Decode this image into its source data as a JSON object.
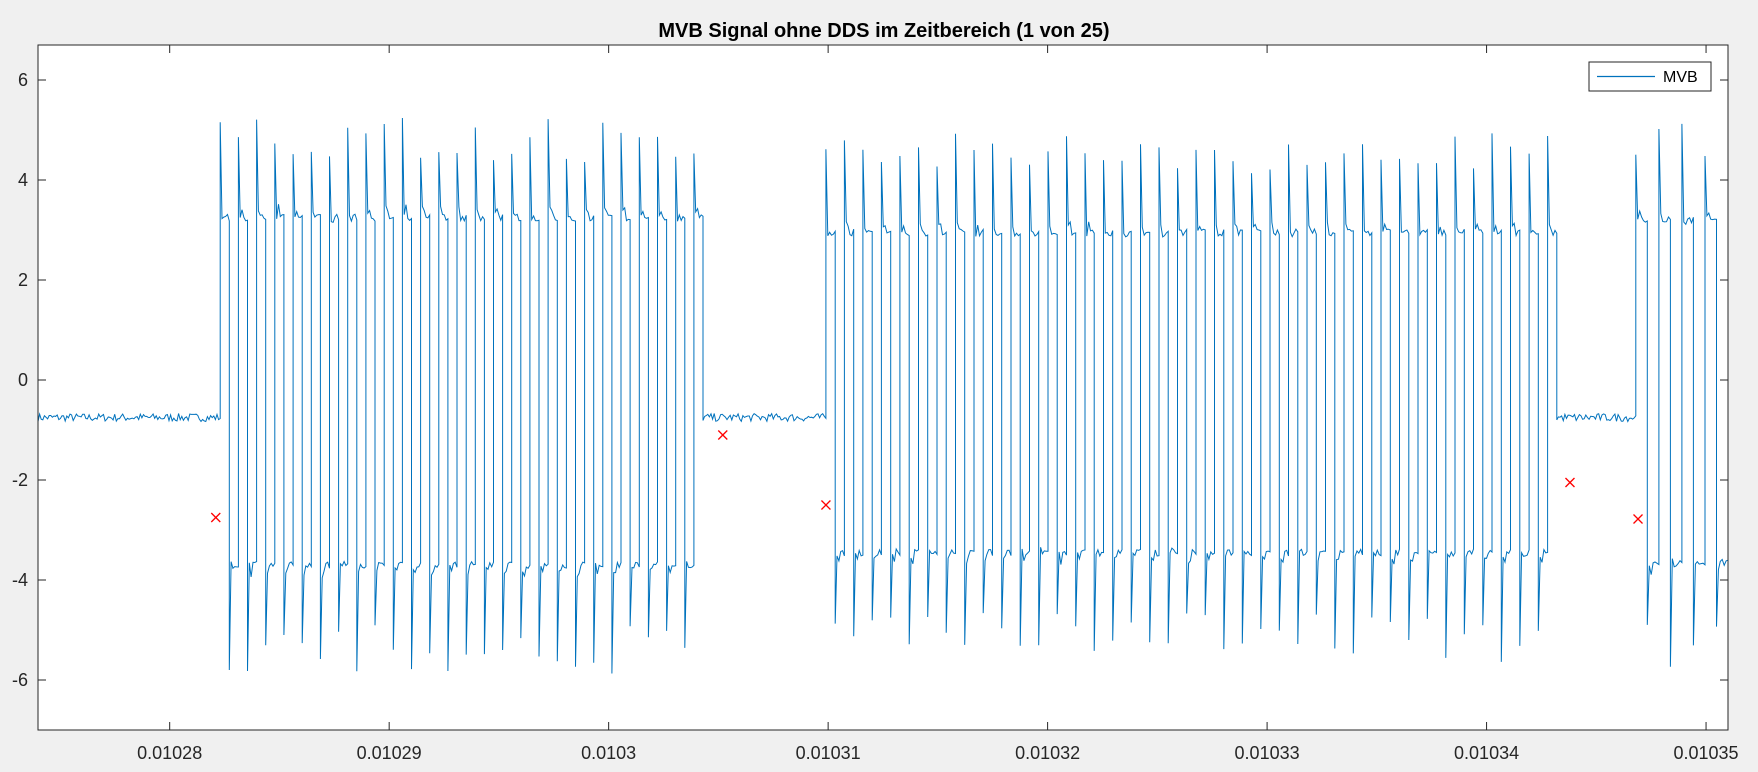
{
  "chart_data": {
    "type": "line",
    "title": "MVB Signal ohne DDS im Zeitbereich (1 von 25)",
    "xlabel": "",
    "ylabel": "",
    "xlim": [
      0.010274,
      0.010351
    ],
    "ylim": [
      -7,
      6.7
    ],
    "xticks": [
      0.01028,
      0.01029,
      0.0103,
      0.01031,
      0.01032,
      0.01033,
      0.01034,
      0.01035
    ],
    "xtick_labels": [
      "0.01028",
      "0.01029",
      "0.0103",
      "0.01031",
      "0.01032",
      "0.01033",
      "0.01034",
      "0.01035"
    ],
    "yticks": [
      6,
      4,
      2,
      0,
      -2,
      -4,
      -6
    ],
    "ytick_labels": [
      "6",
      "4",
      "2",
      "0",
      "-2",
      "-4",
      "-6"
    ],
    "grid": false,
    "legend_position": "top-right",
    "series": [
      {
        "name": "MVB",
        "color": "#0072BD",
        "idle_level": -0.75,
        "bursts": [
          {
            "start": 0.0102823,
            "end": 0.0103043,
            "high": 3.25,
            "low": -3.7,
            "toggles": 53
          },
          {
            "start": 0.0103099,
            "end": 0.0103432,
            "high": 2.95,
            "low": -3.45,
            "toggles": 79
          },
          {
            "start": 0.0103468,
            "end": 0.010351,
            "high": 3.2,
            "low": -3.65,
            "toggles": 8
          }
        ]
      },
      {
        "name": "",
        "type": "scatter",
        "marker": "x",
        "color": "#FF0000",
        "x": [
          0.0102821,
          0.0103052,
          0.0103099,
          0.0103438,
          0.0103469
        ],
        "y": [
          -2.75,
          -1.1,
          -2.5,
          -2.05,
          -2.78
        ]
      }
    ]
  }
}
